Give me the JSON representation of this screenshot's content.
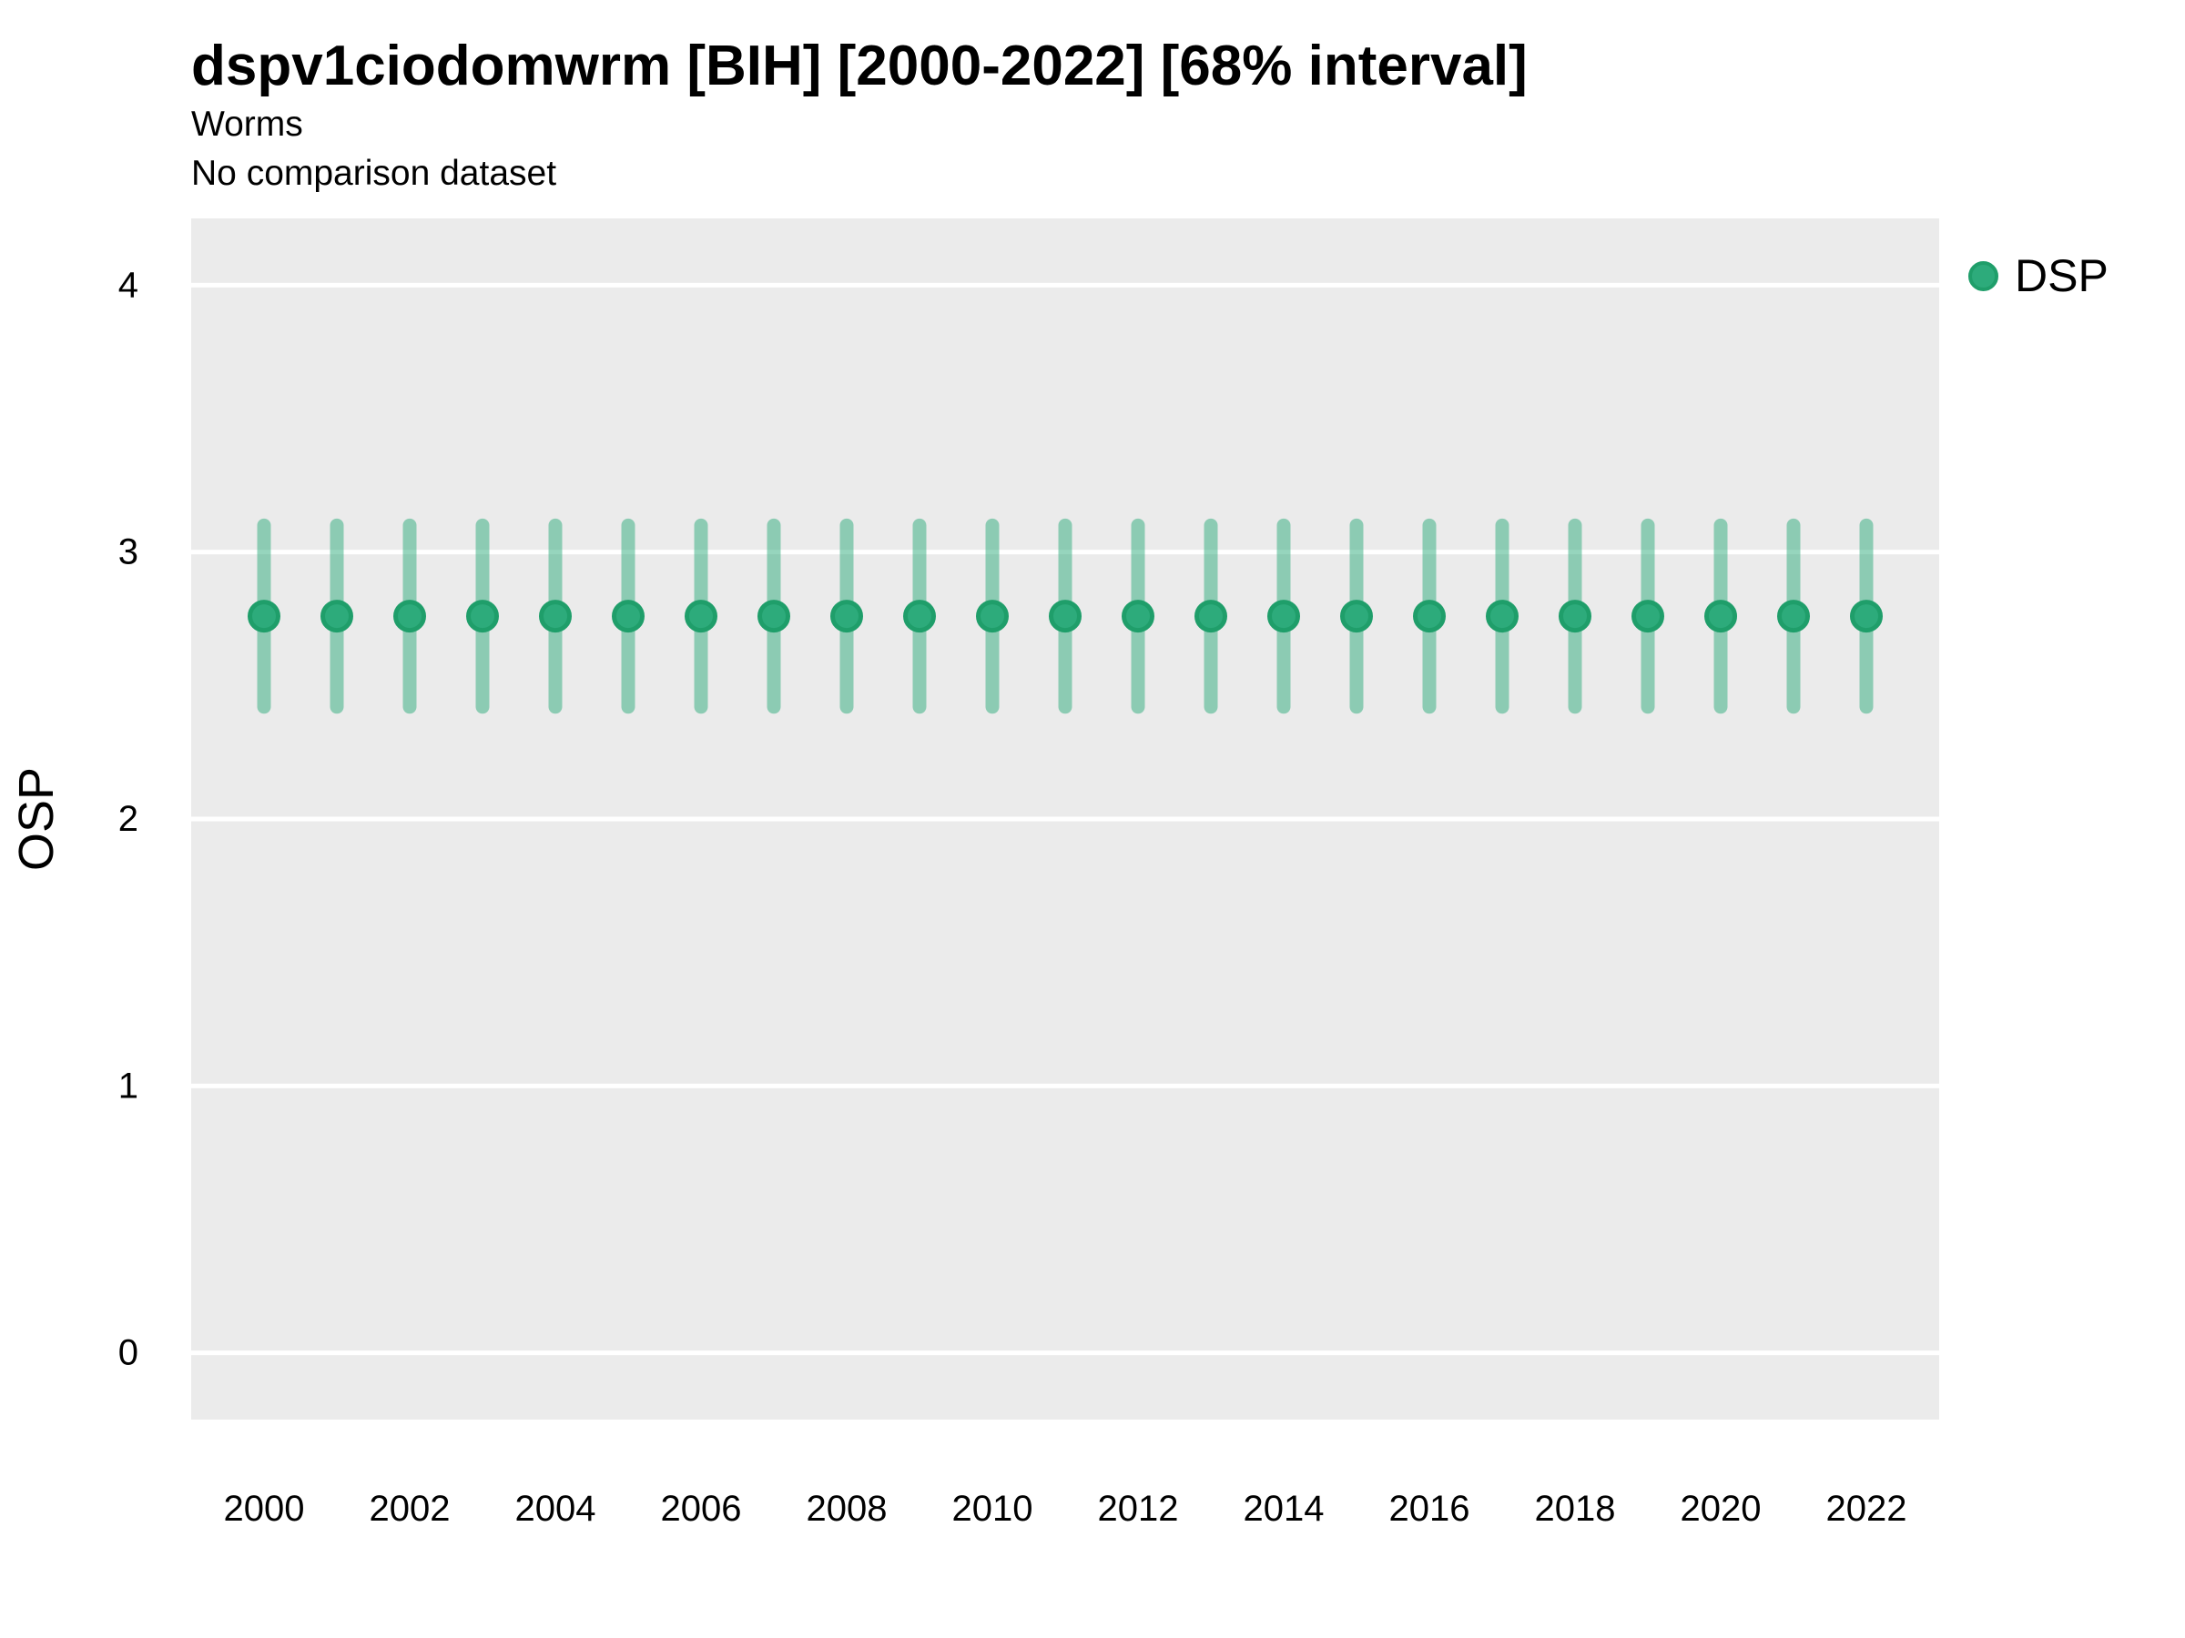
{
  "header": {
    "title": "dspv1ciodomwrm [BIH] [2000-2022] [68% interval]",
    "subtitle": "Worms",
    "note": "No comparison dataset"
  },
  "legend": {
    "position": "right-top",
    "items": [
      {
        "label": "DSP",
        "marker": "circle",
        "fill": "#2dab7b",
        "stroke": "#1f9e6a"
      }
    ]
  },
  "chart_data": {
    "type": "scatter",
    "title": "dspv1ciodomwrm [BIH] [2000-2022] [68% interval]",
    "subtitle": "Worms",
    "note": "No comparison dataset",
    "interval_label": "68% interval",
    "xlabel": "",
    "ylabel": "OSP",
    "x": [
      2000,
      2001,
      2002,
      2003,
      2004,
      2005,
      2006,
      2007,
      2008,
      2009,
      2010,
      2011,
      2012,
      2013,
      2014,
      2015,
      2016,
      2017,
      2018,
      2019,
      2020,
      2021,
      2022
    ],
    "series": [
      {
        "name": "DSP",
        "y": [
          2.76,
          2.76,
          2.76,
          2.76,
          2.76,
          2.76,
          2.76,
          2.76,
          2.76,
          2.76,
          2.76,
          2.76,
          2.76,
          2.76,
          2.76,
          2.76,
          2.76,
          2.76,
          2.76,
          2.76,
          2.76,
          2.76,
          2.76
        ],
        "y_lo": [
          2.42,
          2.42,
          2.42,
          2.42,
          2.42,
          2.42,
          2.42,
          2.42,
          2.42,
          2.42,
          2.42,
          2.42,
          2.42,
          2.42,
          2.42,
          2.42,
          2.42,
          2.42,
          2.42,
          2.42,
          2.42,
          2.42,
          2.42
        ],
        "y_hi": [
          3.1,
          3.1,
          3.1,
          3.1,
          3.1,
          3.1,
          3.1,
          3.1,
          3.1,
          3.1,
          3.1,
          3.1,
          3.1,
          3.1,
          3.1,
          3.1,
          3.1,
          3.1,
          3.1,
          3.1,
          3.1,
          3.1,
          3.1
        ]
      }
    ],
    "xticks": [
      2000,
      2002,
      2004,
      2006,
      2008,
      2010,
      2012,
      2014,
      2016,
      2018,
      2020,
      2022
    ],
    "yticks": [
      0,
      1,
      2,
      3,
      4
    ],
    "xlim": [
      1999,
      2023
    ],
    "ylim": [
      -0.25,
      4.25
    ],
    "grid": {
      "horizontal_major": true,
      "vertical": false,
      "color": "#ffffff"
    },
    "panel_bg": "#ebebeb",
    "legend_position": "right",
    "colors": {
      "point_fill": "#2dab7b",
      "point_stroke": "#1f9e6a",
      "errorbar": "rgba(45,171,123,0.5)",
      "text": "#000000"
    }
  }
}
